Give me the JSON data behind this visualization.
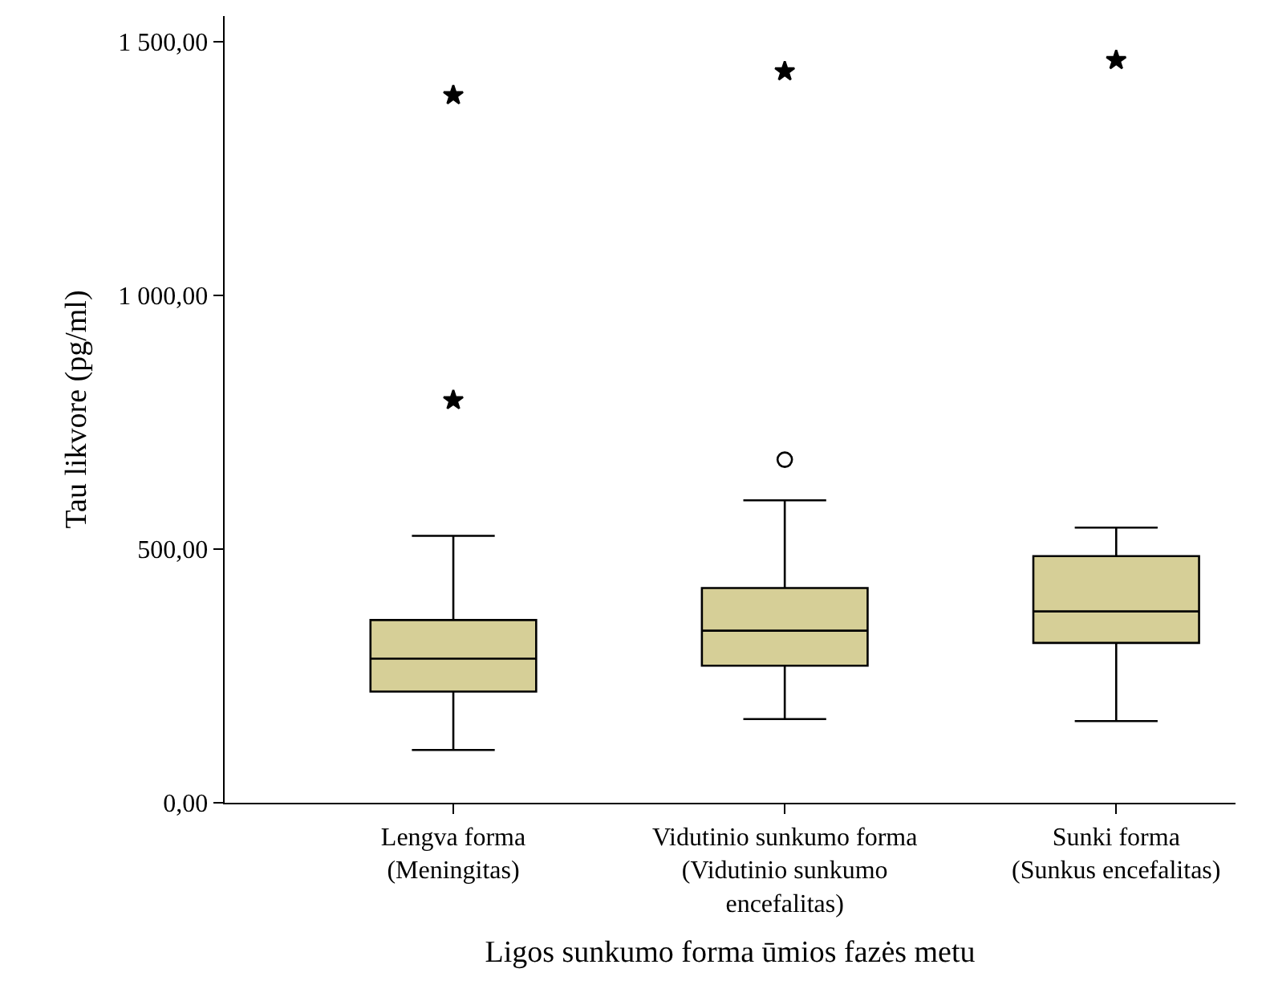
{
  "chart_data": {
    "type": "box",
    "xlabel": "Ligos sunkumo forma ūmios fazės metu",
    "ylabel": "Tau likvore (pg/ml)",
    "categories": [
      "Lengva forma\n(Meningitas)",
      "Vidutinio sunkumo forma\n(Vidutinio sunkumo\nencefalitas)",
      "Sunki forma\n(Sunkus encefalitas)"
    ],
    "ylim": [
      0,
      1550
    ],
    "yticks": [
      {
        "value": 0,
        "label": "0,00"
      },
      {
        "value": 500,
        "label": "500,00"
      },
      {
        "value": 1000,
        "label": "1 000,00"
      },
      {
        "value": 1500,
        "label": "1 500,00"
      }
    ],
    "series": [
      {
        "color": "#d6cf97",
        "boxes": [
          {
            "low": 104,
            "q1": 219,
            "median": 284,
            "q3": 360,
            "high": 526
          },
          {
            "low": 165,
            "q1": 270,
            "median": 339,
            "q3": 423,
            "high": 596,
            "outliers": [
              676
            ]
          },
          {
            "low": 161,
            "q1": 315,
            "median": 377,
            "q3": 486,
            "high": 542
          }
        ]
      },
      {
        "type": "scatter",
        "marker": "star",
        "color": "#000000",
        "x": [
          "Lengva forma\n(Meningitas)",
          "Lengva forma\n(Meningitas)",
          "Vidutinio sunkumo forma\n(Vidutinio sunkumo\nencefalitas)",
          "Sunki forma\n(Sunkus encefalitas)"
        ],
        "values": [
          793,
          1394,
          1441,
          1463
        ]
      }
    ]
  }
}
